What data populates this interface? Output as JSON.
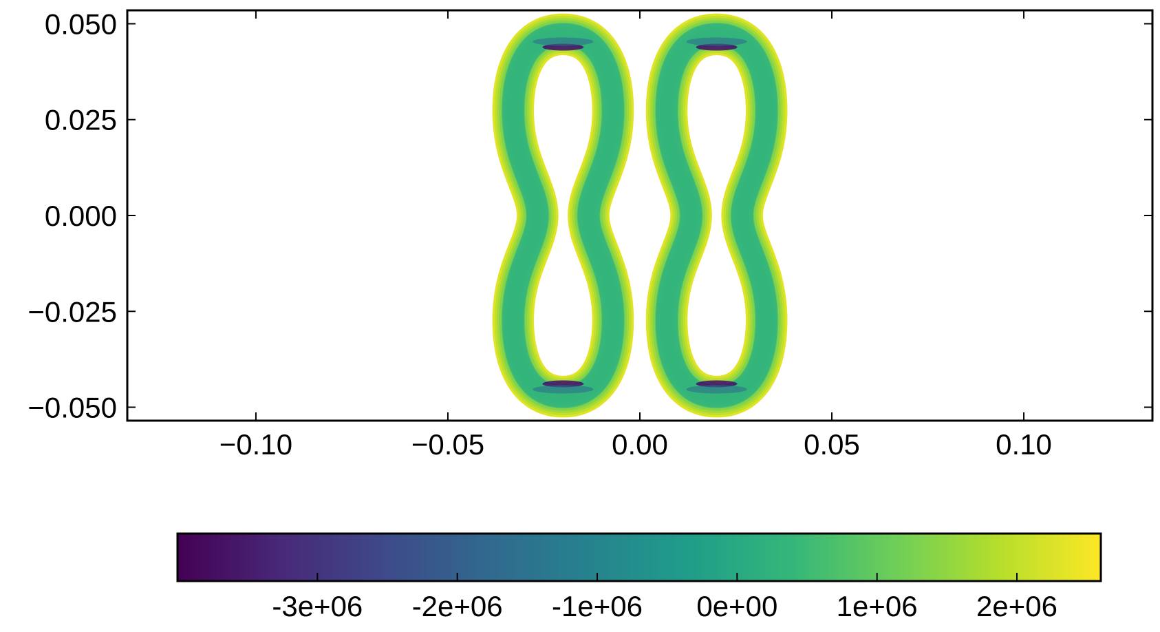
{
  "chart_data": {
    "type": "scatter",
    "title": "",
    "xlabel": "",
    "ylabel": "",
    "xlim": [
      -0.1335,
      0.1335
    ],
    "ylim": [
      -0.0535,
      0.0535
    ],
    "grid": false,
    "xticks": [
      -0.1,
      -0.05,
      0.0,
      0.05,
      0.1
    ],
    "xtick_labels": [
      "−0.10",
      "−0.05",
      "0.00",
      "0.05",
      "0.10"
    ],
    "yticks": [
      0.05,
      0.025,
      0.0,
      -0.025,
      -0.05
    ],
    "ytick_labels": [
      "0.050",
      "0.025",
      "0.000",
      "−0.025",
      "−0.050"
    ],
    "colormap": "viridis",
    "colormap_stops": [
      "#440154",
      "#482878",
      "#3e4989",
      "#31688e",
      "#26828e",
      "#1f9e89",
      "#35b779",
      "#6ece58",
      "#b5de2b",
      "#fde725"
    ],
    "colorbar": {
      "orientation": "horizontal",
      "placement": "bottom",
      "range": [
        -4000000.0,
        2600000.0
      ],
      "ticks": [
        -3000000.0,
        -2000000.0,
        -1000000.0,
        0,
        1000000.0,
        2000000.0
      ],
      "tick_labels": [
        "-3e+06",
        "-2e+06",
        "-1e+06",
        "0e+00",
        "1e+06",
        "2e+06"
      ]
    },
    "shapes": [
      {
        "center_x": -0.02,
        "center_y": 0.0,
        "outer_half_height": 0.0525,
        "inner_half_height": 0.042,
        "min_value": -3600000.0,
        "max_value": 2300000.0,
        "mid_value": 300000.0
      },
      {
        "center_x": 0.02,
        "center_y": 0.0,
        "outer_half_height": 0.0525,
        "inner_half_height": 0.042,
        "min_value": -3600000.0,
        "max_value": 2300000.0,
        "mid_value": 300000.0
      }
    ]
  }
}
